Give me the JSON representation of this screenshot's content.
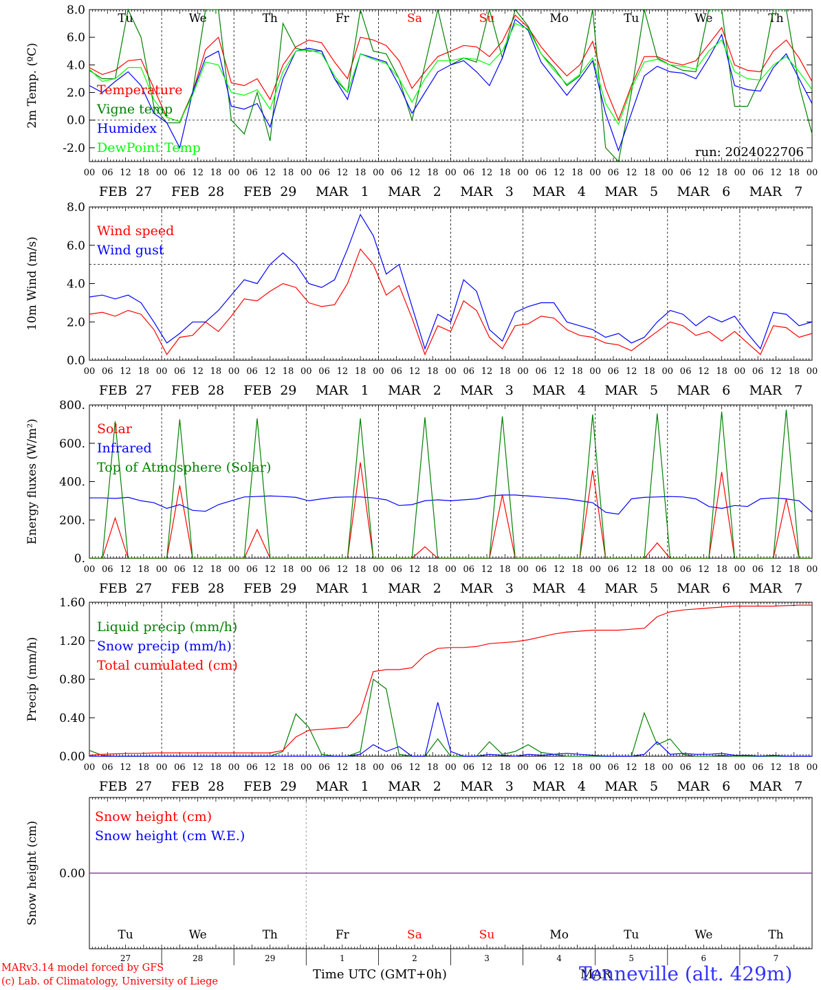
{
  "days": [
    {
      "wd": "Tu",
      "wd_color": "#000000",
      "date_label": "FEB  27",
      "daynum": "27"
    },
    {
      "wd": "We",
      "wd_color": "#000000",
      "date_label": "FEB  28",
      "daynum": "28"
    },
    {
      "wd": "Th",
      "wd_color": "#000000",
      "date_label": "FEB  29",
      "daynum": "29"
    },
    {
      "wd": "Fr",
      "wd_color": "#000000",
      "date_label": "MAR   1",
      "daynum": "1"
    },
    {
      "wd": "Sa",
      "wd_color": "#ff0000",
      "date_label": "MAR   2",
      "daynum": "2"
    },
    {
      "wd": "Su",
      "wd_color": "#ff0000",
      "date_label": "MAR   3",
      "daynum": "3"
    },
    {
      "wd": "Mo",
      "wd_color": "#000000",
      "date_label": "MAR   4",
      "daynum": "4"
    },
    {
      "wd": "Tu",
      "wd_color": "#000000",
      "date_label": "MAR   5",
      "daynum": "5"
    },
    {
      "wd": "We",
      "wd_color": "#000000",
      "date_label": "MAR   6",
      "daynum": "6"
    },
    {
      "wd": "Th",
      "wd_color": "#000000",
      "date_label": "MAR   7",
      "daynum": "7"
    }
  ],
  "hour_labels": [
    "00",
    "06",
    "12",
    "18"
  ],
  "final_hour_label": "00",
  "run_label": "run: 2024022706",
  "footer": {
    "model": "MARv3.14 model forced by GFS",
    "lab": "(c) Lab. of Climatology, University of Liege",
    "xlabel": "Time UTC (GMT+0h)",
    "month": "MAR",
    "station": "Tenneville (alt. 429m)"
  },
  "chart_data": [
    {
      "type": "line",
      "ylabel": "2m Temp. (ºC)",
      "ylim": [
        -3.0,
        8.0
      ],
      "yticks": [
        -2.0,
        0.0,
        2.0,
        4.0,
        6.0,
        8.0
      ],
      "ytick_labels": [
        "-2.0",
        "0.0",
        "2.0",
        "4.0",
        "6.0",
        "8.0"
      ],
      "ref_line": 0.0,
      "x_unit": "hours since 2024-02-27 00 UTC",
      "x_step_hours": 6,
      "series": [
        {
          "name": "Temperature",
          "color": "#ff0000",
          "values": [
            3.8,
            3.3,
            3.6,
            4.3,
            4.4,
            2.3,
            0.2,
            -0.1,
            2.0,
            5.1,
            6.0,
            2.7,
            2.5,
            3.0,
            1.5,
            4.0,
            5.3,
            5.8,
            5.6,
            4.2,
            3.0,
            6.0,
            5.8,
            5.4,
            4.3,
            2.3,
            3.5,
            4.6,
            5.0,
            5.4,
            5.3,
            4.6,
            5.7,
            7.6,
            6.7,
            5.3,
            4.2,
            3.2,
            4.0,
            5.7,
            2.3,
            0.0,
            2.5,
            4.6,
            4.6,
            4.2,
            4.0,
            4.3,
            5.5,
            6.7,
            4.0,
            3.6,
            3.5,
            5.0,
            5.8,
            4.5,
            2.8
          ]
        },
        {
          "name": "Vigne temp",
          "color": "#008000",
          "values": [
            3.6,
            3.0,
            3.0,
            8.0,
            6.0,
            1.0,
            -0.2,
            -0.2,
            2.0,
            8.0,
            8.0,
            0.0,
            -1.0,
            2.0,
            -1.5,
            7.0,
            5.2,
            5.0,
            5.0,
            3.0,
            2.0,
            8.0,
            5.0,
            4.8,
            3.0,
            0.0,
            4.0,
            8.0,
            4.0,
            4.5,
            4.2,
            8.0,
            4.5,
            8.0,
            6.8,
            4.8,
            3.8,
            2.5,
            3.2,
            8.0,
            -2.0,
            -3.0,
            2.0,
            8.0,
            4.5,
            4.0,
            3.6,
            3.5,
            8.0,
            8.0,
            1.0,
            1.0,
            3.0,
            8.0,
            8.0,
            2.5,
            -1.0
          ]
        },
        {
          "name": "Humidex",
          "color": "#0000ff",
          "values": [
            2.5,
            2.0,
            2.8,
            3.5,
            2.5,
            0.5,
            -0.2,
            -2.0,
            2.0,
            4.5,
            5.0,
            1.0,
            0.8,
            1.2,
            -0.5,
            3.0,
            5.0,
            5.2,
            5.0,
            3.0,
            1.5,
            4.8,
            4.5,
            4.2,
            2.5,
            0.5,
            2.0,
            3.5,
            4.0,
            4.3,
            3.5,
            2.5,
            4.5,
            7.3,
            6.5,
            4.2,
            3.0,
            1.8,
            3.0,
            4.3,
            0.5,
            -2.2,
            0.5,
            3.2,
            3.9,
            3.5,
            3.4,
            3.0,
            4.5,
            6.2,
            2.5,
            2.2,
            2.1,
            3.8,
            4.8,
            3.0,
            1.2
          ]
        },
        {
          "name": "DewPoint Temp",
          "color": "#00ff00",
          "values": [
            3.7,
            2.8,
            3.0,
            3.8,
            3.8,
            1.5,
            0.2,
            -0.1,
            1.8,
            4.2,
            4.0,
            2.0,
            1.8,
            2.2,
            0.8,
            3.5,
            5.0,
            5.1,
            4.8,
            3.2,
            2.0,
            4.8,
            4.4,
            4.1,
            3.0,
            1.3,
            3.0,
            4.3,
            4.3,
            4.5,
            4.4,
            4.0,
            5.0,
            7.0,
            6.6,
            4.8,
            3.6,
            2.6,
            3.3,
            4.5,
            1.2,
            -0.3,
            2.3,
            4.2,
            4.4,
            4.0,
            3.9,
            3.7,
            5.0,
            5.8,
            3.5,
            3.0,
            2.9,
            4.0,
            4.6,
            3.5,
            2.2
          ]
        }
      ]
    },
    {
      "type": "line",
      "ylabel": "10m Wind (m/s)",
      "ylim": [
        0.0,
        8.0
      ],
      "yticks": [
        0.0,
        2.0,
        4.0,
        6.0,
        8.0
      ],
      "ytick_labels": [
        "0.0",
        "2.0",
        "4.0",
        "6.0",
        "8.0"
      ],
      "ref_line": 5.0,
      "x_unit": "hours since 2024-02-27 00 UTC",
      "x_step_hours": 6,
      "series": [
        {
          "name": "Wind speed",
          "color": "#ff0000",
          "values": [
            2.4,
            2.5,
            2.3,
            2.6,
            2.4,
            1.6,
            0.3,
            1.2,
            1.3,
            2.0,
            1.5,
            2.3,
            3.2,
            3.1,
            3.6,
            4.0,
            3.8,
            3.0,
            2.8,
            2.9,
            4.0,
            5.8,
            5.0,
            3.4,
            3.9,
            2.2,
            0.3,
            1.8,
            1.5,
            3.1,
            2.6,
            1.2,
            0.6,
            1.8,
            1.9,
            2.3,
            2.2,
            1.6,
            1.3,
            1.2,
            0.9,
            0.8,
            0.5,
            1.0,
            1.5,
            2.0,
            1.8,
            1.3,
            1.5,
            1.0,
            1.5,
            0.9,
            0.3,
            1.8,
            1.7,
            1.2,
            1.4
          ]
        },
        {
          "name": "Wind gust",
          "color": "#0000ff",
          "values": [
            3.3,
            3.4,
            3.2,
            3.4,
            3.0,
            2.0,
            0.9,
            1.4,
            2.0,
            2.0,
            2.6,
            3.4,
            4.2,
            4.0,
            5.0,
            5.6,
            5.0,
            4.0,
            3.8,
            4.2,
            5.8,
            7.6,
            6.5,
            4.5,
            5.0,
            2.8,
            0.6,
            2.4,
            2.0,
            4.2,
            3.6,
            1.6,
            1.0,
            2.5,
            2.8,
            3.0,
            3.0,
            2.0,
            1.8,
            1.6,
            1.2,
            1.4,
            0.9,
            1.2,
            2.0,
            2.6,
            2.4,
            1.8,
            2.3,
            2.0,
            2.3,
            1.4,
            0.6,
            2.5,
            2.4,
            1.8,
            2.0
          ]
        }
      ]
    },
    {
      "type": "line",
      "ylabel": "Energy fluxes (W/m²)",
      "ylim": [
        0.0,
        800.0
      ],
      "yticks": [
        0,
        200,
        400,
        600,
        800
      ],
      "ytick_labels": [
        "0.",
        "200.",
        "400.",
        "600.",
        "800."
      ],
      "x_unit": "hours since 2024-02-27 00 UTC",
      "x_step_hours": 6,
      "series": [
        {
          "name": "Solar",
          "color": "#ff0000",
          "values": [
            0,
            0,
            210,
            0,
            0,
            0,
            0,
            380,
            0,
            0,
            0,
            0,
            0,
            150,
            0,
            0,
            0,
            0,
            0,
            0,
            0,
            500,
            0,
            0,
            0,
            0,
            60,
            0,
            0,
            0,
            0,
            0,
            330,
            0,
            0,
            0,
            0,
            0,
            0,
            460,
            0,
            0,
            0,
            0,
            80,
            0,
            0,
            0,
            0,
            450,
            0,
            0,
            0,
            0,
            310,
            0,
            0
          ]
        },
        {
          "name": "Infrared",
          "color": "#0000ff",
          "values": [
            315,
            315,
            312,
            318,
            300,
            290,
            260,
            280,
            250,
            245,
            280,
            300,
            320,
            322,
            325,
            322,
            318,
            300,
            310,
            318,
            320,
            320,
            315,
            305,
            275,
            280,
            300,
            305,
            300,
            305,
            310,
            325,
            330,
            330,
            325,
            320,
            315,
            310,
            300,
            290,
            240,
            230,
            310,
            318,
            320,
            322,
            320,
            310,
            270,
            260,
            275,
            270,
            310,
            315,
            310,
            300,
            240
          ]
        },
        {
          "name": "Top of Atmosphere (Solar)",
          "color": "#008000",
          "values": [
            0,
            0,
            715,
            0,
            0,
            0,
            0,
            725,
            0,
            0,
            0,
            0,
            0,
            730,
            0,
            0,
            0,
            0,
            0,
            0,
            0,
            730,
            0,
            0,
            0,
            0,
            735,
            0,
            0,
            0,
            0,
            0,
            740,
            0,
            0,
            0,
            0,
            0,
            0,
            750,
            0,
            0,
            0,
            0,
            755,
            0,
            0,
            0,
            0,
            765,
            0,
            0,
            0,
            0,
            775,
            0,
            0
          ]
        }
      ]
    },
    {
      "type": "line",
      "ylabel": "Precip (mm/h)",
      "ylim": [
        0.0,
        1.6
      ],
      "yticks": [
        0.0,
        0.4,
        0.8,
        1.2,
        1.6
      ],
      "ytick_labels": [
        "0.00",
        "0.40",
        "0.80",
        "1.20",
        "1.60"
      ],
      "x_unit": "hours since 2024-02-27 00 UTC",
      "x_step_hours": 6,
      "series": [
        {
          "name": "Liquid precip (mm/h)",
          "color": "#008000",
          "values": [
            0.06,
            0.01,
            0.0,
            0.0,
            0.0,
            0.0,
            0.0,
            0.0,
            0.0,
            0.0,
            0.0,
            0.0,
            0.0,
            0.0,
            0.0,
            0.05,
            0.44,
            0.3,
            0.02,
            0.0,
            0.0,
            0.05,
            0.8,
            0.7,
            0.02,
            0.0,
            0.0,
            0.18,
            0.0,
            0.0,
            0.0,
            0.15,
            0.02,
            0.05,
            0.12,
            0.04,
            0.02,
            0.0,
            0.0,
            0.0,
            0.0,
            0.0,
            0.0,
            0.45,
            0.12,
            0.18,
            0.02,
            0.0,
            0.0,
            0.01,
            0.0,
            0.0,
            0.0,
            0.0,
            0.0,
            0.0,
            0.0
          ]
        },
        {
          "name": "Snow precip (mm/h)",
          "color": "#0000ff",
          "values": [
            0.0,
            0.0,
            0.0,
            0.0,
            0.0,
            0.0,
            0.0,
            0.0,
            0.0,
            0.0,
            0.0,
            0.0,
            0.0,
            0.0,
            0.0,
            0.0,
            0.0,
            0.0,
            0.0,
            0.0,
            0.0,
            0.02,
            0.12,
            0.05,
            0.1,
            0.0,
            0.0,
            0.56,
            0.05,
            0.0,
            0.0,
            0.02,
            0.01,
            0.0,
            0.02,
            0.01,
            0.02,
            0.03,
            0.02,
            0.01,
            0.0,
            0.0,
            0.0,
            0.02,
            0.15,
            0.02,
            0.03,
            0.02,
            0.02,
            0.03,
            0.01,
            0.01,
            0.0,
            0.01,
            0.0,
            0.0,
            0.0
          ]
        },
        {
          "name": "Total cumulated (cm)",
          "color": "#ff0000",
          "values": [
            0.01,
            0.02,
            0.025,
            0.03,
            0.03,
            0.035,
            0.035,
            0.035,
            0.035,
            0.035,
            0.035,
            0.035,
            0.035,
            0.035,
            0.035,
            0.06,
            0.2,
            0.27,
            0.28,
            0.29,
            0.3,
            0.45,
            0.88,
            0.9,
            0.9,
            0.92,
            1.05,
            1.12,
            1.13,
            1.13,
            1.14,
            1.17,
            1.18,
            1.19,
            1.21,
            1.24,
            1.27,
            1.29,
            1.3,
            1.31,
            1.31,
            1.31,
            1.32,
            1.33,
            1.45,
            1.5,
            1.52,
            1.53,
            1.54,
            1.55,
            1.56,
            1.56,
            1.56,
            1.56,
            1.565,
            1.57,
            1.57
          ]
        }
      ]
    },
    {
      "type": "line",
      "ylabel": "Snow height (cm)",
      "ylim": [
        -0.6,
        0.6
      ],
      "yticks": [
        0.0
      ],
      "ytick_labels": [
        "0.00"
      ],
      "x_unit": "hours since 2024-02-27 00 UTC",
      "x_step_hours": 6,
      "series": [
        {
          "name": "Snow height (cm)",
          "color": "#ff0000",
          "values": [
            0,
            0
          ]
        },
        {
          "name": "Snow height (cm W.E.)",
          "color": "#0000ff",
          "values": [
            0,
            0
          ]
        }
      ]
    }
  ]
}
